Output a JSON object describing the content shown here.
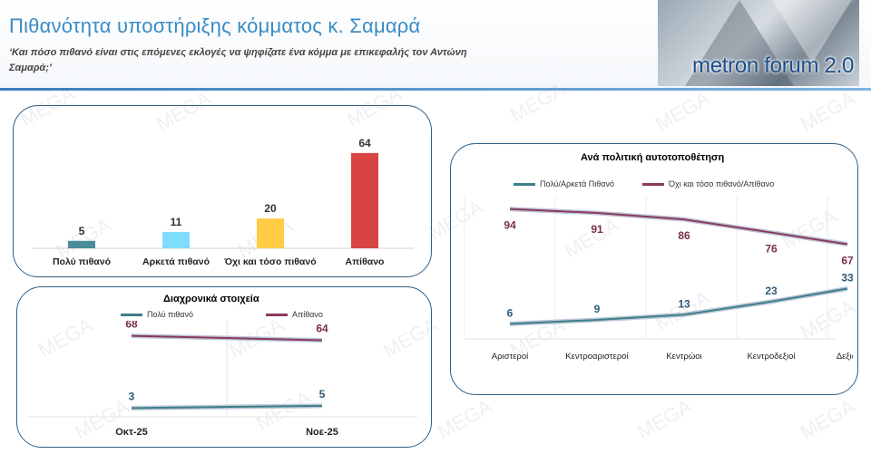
{
  "header": {
    "title": "Πιθανότητα υποστήριξης κόμματος κ. Σαμαρά",
    "subtitle_line1": "‘Και πόσο πιθανό είναι στις επόμενες εκλογές να ψηφίζατε ένα κόμμα με επικεφαλής τον Αντώνη",
    "subtitle_line2": "Σαμαρά;’",
    "brand": "metron forum 2.0"
  },
  "watermark": "MEGA",
  "colors": {
    "bar_very": "#4a8c99",
    "bar_fairly": "#7fdcfb",
    "bar_notso": "#ffcc44",
    "bar_unlikely": "#d84444",
    "line_likely": "#3d7f8a",
    "line_unlikely": "#8a3a5c",
    "label_likely": "#2f5a7a",
    "label_unlikely": "#7a2e4e",
    "panel_border": "#2f5f86"
  },
  "chart_data": [
    {
      "type": "bar",
      "categories": [
        "Πολύ πιθανό",
        "Αρκετά πιθανό",
        "Όχι και τόσο πιθανό",
        "Απίθανο"
      ],
      "values": [
        5,
        11,
        20,
        64
      ],
      "ylim": [
        0,
        70
      ]
    },
    {
      "type": "line",
      "title": "Διαχρονικά στοιχεία",
      "categories": [
        "Οκτ-25",
        "Νοε-25"
      ],
      "series": [
        {
          "name": "Πολύ πιθανό",
          "values": [
            3,
            5
          ]
        },
        {
          "name": "Απίθανο",
          "values": [
            68,
            64
          ]
        }
      ],
      "ylim": [
        0,
        75
      ],
      "legend": "top"
    },
    {
      "type": "line",
      "title": "Ανά πολιτική αυτοτοποθέτηση",
      "categories": [
        "Αριστεροί",
        "Κεντροαριστεροί",
        "Κεντρώοι",
        "Κεντροδεξιοί",
        "Δεξιοί"
      ],
      "series": [
        {
          "name": "Πολύ/Αρκετά Πιθανό",
          "values": [
            6,
            9,
            13,
            23,
            33
          ]
        },
        {
          "name": "Όχι και τόσο πιθανό/Απίθανο",
          "values": [
            94,
            91,
            86,
            76,
            67
          ]
        }
      ],
      "ylim": [
        0,
        100
      ],
      "legend": "top"
    }
  ]
}
